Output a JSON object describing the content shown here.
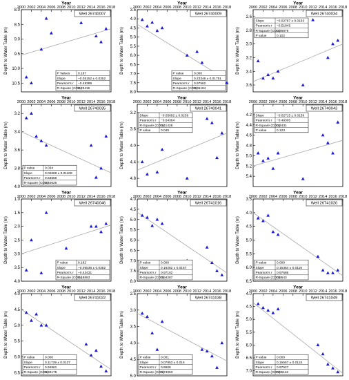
{
  "chart_data": [
    {
      "type": "scatter",
      "title": "Well 26740007",
      "xlabel": "Year",
      "ylabel": "Depth to Water Table (m)",
      "xlim": [
        2000,
        2018
      ],
      "ylim": [
        8.0,
        10.8
      ],
      "y_inverted": true,
      "xticks": [
        "2000",
        "2002",
        "2004",
        "2006",
        "2008",
        "2010",
        "2012",
        "2014",
        "2016",
        "2018"
      ],
      "yticks": [
        "8.0",
        "8.5",
        "9.0",
        "9.5",
        "10.0",
        "10.5"
      ],
      "x": [
        2001,
        2002,
        2004,
        2005,
        2006,
        2012,
        2015,
        2016,
        2017
      ],
      "y": [
        10.3,
        10.5,
        9.35,
        8.3,
        8.8,
        8.45,
        8.9,
        9.1,
        8.65
      ],
      "trend": [
        9.55,
        8.65
      ],
      "stats": {
        "labels": [
          "P Values",
          "Slope",
          "Pearson's r",
          "R-Square (COD)"
        ],
        "values": [
          "0.187",
          "−0.05152 ± 0.0352",
          "−0.49389",
          "0.23415"
        ]
      }
    },
    {
      "type": "scatter",
      "title": "Well 26740009",
      "xlabel": "Year",
      "ylabel": "Depth to Water Table (m)",
      "xlim": [
        2000,
        2018
      ],
      "ylim": [
        3.5,
        8.0
      ],
      "y_inverted": true,
      "xticks": [
        "2000",
        "2002",
        "2004",
        "2006",
        "2008",
        "2010",
        "2012",
        "2014",
        "2016",
        "2018"
      ],
      "yticks": [
        "3.5",
        "4.0",
        "4.5",
        "5.0",
        "5.5",
        "6.0",
        "6.5",
        "7.0",
        "7.5",
        "8.0"
      ],
      "x": [
        2001,
        2002,
        2003,
        2004,
        2005,
        2010,
        2012,
        2013,
        2016,
        2017,
        2018
      ],
      "y": [
        4.05,
        4.4,
        4.2,
        4.65,
        4.5,
        6.0,
        5.8,
        6.4,
        7.05,
        7.0,
        7.5
      ],
      "trend": [
        4.3,
        7.35
      ],
      "stats": {
        "labels": [
          "P value",
          "Slope",
          "Pearson's r",
          "R-Square (COD)"
        ],
        "values": [
          "0.000",
          "0.23346 ± 0.01751",
          "0.97562",
          "0.95184"
        ]
      }
    },
    {
      "type": "scatter",
      "title": "Well 26740034",
      "xlabel": "Year",
      "ylabel": "Depth to Water Table (m)",
      "xlim": [
        2000,
        2018
      ],
      "ylim": [
        2.5,
        3.7
      ],
      "y_inverted": true,
      "xticks": [
        "2000",
        "2002",
        "2004",
        "2006",
        "2008",
        "2010",
        "2012",
        "2014",
        "2016",
        "2018"
      ],
      "yticks": [
        "2.6",
        "2.8",
        "3.0",
        "3.2",
        "3.4",
        "3.6"
      ],
      "x": [
        2001,
        2002,
        2003,
        2004,
        2005,
        2010,
        2012,
        2015,
        2016,
        2017
      ],
      "y": [
        3.25,
        3.5,
        3.45,
        3.5,
        3.4,
        3.6,
        2.65,
        3.2,
        3.0,
        2.95
      ],
      "trend": [
        3.55,
        3.0
      ],
      "stats": {
        "labels": [
          "Slope",
          "Pearson's r",
          "R-Square (COD)",
          "P value"
        ],
        "values": [
          "−0.02787 ± 0.0153",
          "−0.51845",
          "0.26879",
          "0.102"
        ]
      }
    },
    {
      "type": "scatter",
      "title": "Well 26740035",
      "xlabel": "Year",
      "ylabel": "Depth to Water Table (m)",
      "xlim": [
        2000,
        2018
      ],
      "ylim": [
        3.1,
        4.0
      ],
      "y_inverted": true,
      "xticks": [
        "2000",
        "2002",
        "2004",
        "2006",
        "2008",
        "2010",
        "2012",
        "2014",
        "2016",
        "2018"
      ],
      "yticks": [
        "3.2",
        "3.4",
        "3.6",
        "3.8",
        "4.0"
      ],
      "x": [
        2001,
        2002,
        2003,
        2004,
        2005,
        2014,
        2015,
        2016,
        2017
      ],
      "y": [
        3.25,
        3.2,
        3.45,
        3.5,
        3.55,
        3.55,
        3.9,
        3.8,
        3.45
      ],
      "trend": [
        3.4,
        3.85
      ],
      "stats": {
        "labels": [
          "P value",
          "Slope",
          "Pearson's r",
          "R-Square (COD)"
        ],
        "values": [
          "0.034",
          "0.02689 ± 0.01108",
          "0.63656",
          "0.40626"
        ]
      }
    },
    {
      "type": "scatter",
      "title": "Well 26740041",
      "xlabel": "Year",
      "ylabel": "Depth to Water Table (m)",
      "xlim": [
        2000,
        2018
      ],
      "ylim": [
        3.0,
        5.0
      ],
      "y_inverted": true,
      "xticks": [
        "2000",
        "2002",
        "2004",
        "2006",
        "2008",
        "2010",
        "2012",
        "2014",
        "2016",
        "2018"
      ],
      "yticks": [
        "3.2",
        "3.6",
        "4.0",
        "4.4",
        "4.8"
      ],
      "x": [
        2001,
        2002,
        2004,
        2005,
        2010,
        2014,
        2015,
        2016,
        2017
      ],
      "y": [
        4.4,
        4.7,
        4.65,
        4.1,
        4.8,
        3.35,
        3.45,
        4.3,
        3.7
      ],
      "trend": [
        4.6,
        3.7
      ],
      "stats": {
        "labels": [
          "Slope",
          "Pearson's r",
          "R-Square (COD)",
          "P value"
        ],
        "values": [
          "−0.05692 ± 0.0239",
          "−0.64364",
          "0.41428",
          "0.045"
        ]
      }
    },
    {
      "type": "scatter",
      "title": "Well 26740043",
      "xlabel": "Year",
      "ylabel": "Depth to Water Table (m)",
      "xlim": [
        2000,
        2018
      ],
      "ylim": [
        4.0,
        5.6
      ],
      "y_inverted": true,
      "xticks": [
        "2000",
        "2002",
        "2004",
        "2006",
        "2008",
        "2010",
        "2012",
        "2014",
        "2016",
        "2018"
      ],
      "yticks": [
        "4.2",
        "4.4",
        "4.6",
        "4.8",
        "5.0",
        "5.2",
        "5.4"
      ],
      "x": [
        2001,
        2002,
        2003,
        2004,
        2005,
        2010,
        2014,
        2015,
        2016,
        2017
      ],
      "y": [
        4.95,
        5.1,
        5.05,
        5.25,
        4.95,
        5.45,
        4.6,
        4.75,
        4.95,
        4.35
      ],
      "trend": [
        5.2,
        4.7
      ],
      "stats": {
        "labels": [
          "Slope",
          "Pearson's r",
          "R-Square (COD)",
          "P value"
        ],
        "values": [
          "−0.02715 ± 0.0159",
          "−0.49305",
          "0.2431",
          "0.123"
        ]
      }
    },
    {
      "type": "scatter",
      "title": "Well 26740046",
      "xlabel": "Year",
      "ylabel": "Depth to Water Table (m)",
      "xlim": [
        2000,
        2018
      ],
      "ylim": [
        1.0,
        4.0
      ],
      "y_inverted": true,
      "xticks": [
        "2000",
        "2002",
        "2004",
        "2006",
        "2008",
        "2010",
        "2012",
        "2014",
        "2016",
        "2018"
      ],
      "yticks": [
        "1.0",
        "1.5",
        "2.0",
        "2.5",
        "3.0",
        "3.5",
        "4.0"
      ],
      "x": [
        2001,
        2002,
        2004,
        2005,
        2009,
        2014,
        2015,
        2016,
        2017
      ],
      "y": [
        3.6,
        2.5,
        3.7,
        1.5,
        2.8,
        2.0,
        2.0,
        2.2,
        1.9
      ],
      "trend": [
        3.0,
        1.95
      ],
      "stats": {
        "labels": [
          "P value",
          "Slope",
          "Pearson's r",
          "R-Square (COD)"
        ],
        "values": [
          "0.182",
          "−0.05536 ± 0.0382",
          "−0.43431",
          "0.18863"
        ]
      }
    },
    {
      "type": "scatter",
      "title": "Well 26741016",
      "xlabel": "Year",
      "ylabel": "Depth to Water Table (m)",
      "xlim": [
        2000,
        2018
      ],
      "ylim": [
        4.0,
        8.0
      ],
      "y_inverted": true,
      "xticks": [
        "2000",
        "2002",
        "2004",
        "2006",
        "2008",
        "2010",
        "2012",
        "2014",
        "2016",
        "2018"
      ],
      "yticks": [
        "4.0",
        "4.5",
        "5.0",
        "5.5",
        "6.0",
        "6.5",
        "7.0",
        "7.5",
        "8.0"
      ],
      "x": [
        2001,
        2002,
        2003,
        2004,
        2005,
        2010,
        2014,
        2015,
        2016,
        2017
      ],
      "y": [
        4.8,
        4.9,
        5.3,
        5.0,
        5.2,
        7.0,
        6.35,
        7.1,
        7.5,
        7.7
      ],
      "trend": [
        4.65,
        7.6
      ],
      "stats": {
        "labels": [
          "P value",
          "Slope",
          "Pearson's r",
          "R-Square (COD)"
        ],
        "values": [
          "0.000",
          "0.19282 ± 0.0167",
          "0.97102",
          "0.94287"
        ]
      }
    },
    {
      "type": "scatter",
      "title": "Well 26741020",
      "xlabel": "Year",
      "ylabel": "Depth to Water Table (m)",
      "xlim": [
        2000,
        2018
      ],
      "ylim": [
        3.5,
        6.5
      ],
      "y_inverted": true,
      "xticks": [
        "2000",
        "2002",
        "2004",
        "2006",
        "2008",
        "2010",
        "2012",
        "2014",
        "2016",
        "2018"
      ],
      "yticks": [
        "3.5",
        "4.0",
        "4.5",
        "5.0",
        "5.5",
        "6.0",
        "6.5"
      ],
      "x": [
        2001,
        2002,
        2003,
        2004,
        2005,
        2013,
        2014,
        2015,
        2016,
        2017
      ],
      "y": [
        4.2,
        4.3,
        4.1,
        4.7,
        4.8,
        5.6,
        6.1,
        6.2,
        6.2,
        6.1
      ],
      "trend": [
        4.0,
        6.3
      ],
      "stats": {
        "labels": [
          "P value",
          "Slope",
          "Pearson's r",
          "R-Square (COD)"
        ],
        "values": [
          "0.000",
          "0.15364 ± 0.0119",
          "0.97686",
          "0.9543"
        ]
      }
    },
    {
      "type": "scatter",
      "title": "Well 26741022",
      "xlabel": "Year",
      "ylabel": "Depth to Water Table (m)",
      "xlim": [
        2000,
        2018
      ],
      "ylim": [
        4.0,
        6.6
      ],
      "y_inverted": true,
      "xticks": [
        "2000",
        "2002",
        "2004",
        "2006",
        "2008",
        "2010",
        "2012",
        "2014",
        "2016",
        "2018"
      ],
      "yticks": [
        "4.0",
        "4.5",
        "5.0",
        "5.5",
        "6.0",
        "6.5"
      ],
      "x": [
        2001,
        2002,
        2003,
        2004,
        2005,
        2013,
        2014,
        2015,
        2016,
        2017
      ],
      "y": [
        4.6,
        4.85,
        4.65,
        5.0,
        5.0,
        5.6,
        5.95,
        5.8,
        6.3,
        6.45
      ],
      "trend": [
        4.5,
        6.4
      ],
      "stats": {
        "labels": [
          "P value",
          "Slope",
          "Pearson's r",
          "R-Square (COD)"
        ],
        "values": [
          "0.000",
          "0.11739 ± 0.0137",
          "0.94961",
          "0.90175"
        ]
      }
    },
    {
      "type": "scatter",
      "title": "Well 26741038",
      "xlabel": "Year",
      "ylabel": "Depth to Water Table (m)",
      "xlim": [
        2000,
        2018
      ],
      "ylim": [
        2.5,
        5.0
      ],
      "y_inverted": true,
      "xticks": [
        "2000",
        "2002",
        "2004",
        "2006",
        "2008",
        "2010",
        "2012",
        "2014",
        "2016",
        "2018"
      ],
      "yticks": [
        "2.5",
        "3.0",
        "3.5",
        "4.0",
        "4.5",
        "5.0"
      ],
      "x": [
        2001,
        2002,
        2003,
        2004,
        2005,
        2013,
        2014,
        2015,
        2016,
        2017
      ],
      "y": [
        3.1,
        3.2,
        3.7,
        4.2,
        3.35,
        4.2,
        4.25,
        4.4,
        4.75,
        4.0
      ],
      "trend": [
        3.1,
        4.55
      ],
      "stats": {
        "labels": [
          "P value",
          "Slope",
          "Pearson's r",
          "R-Square (COD)"
        ],
        "values": [
          "0.001",
          "0.07953 ± 0.016",
          "0.8606",
          "0.74063"
        ]
      }
    },
    {
      "type": "scatter",
      "title": "Well 26741049",
      "xlabel": "Year",
      "ylabel": "Depth to Water Table (m)",
      "xlim": [
        2000,
        2018
      ],
      "ylim": [
        4.0,
        7.2
      ],
      "y_inverted": true,
      "xticks": [
        "2000",
        "2002",
        "2004",
        "2006",
        "2008",
        "2010",
        "2012",
        "2014",
        "2016",
        "2018"
      ],
      "yticks": [
        "4.0",
        "4.5",
        "5.0",
        "5.5",
        "6.0",
        "6.5",
        "7.0"
      ],
      "x": [
        2001,
        2002,
        2003,
        2004,
        2005,
        2013,
        2014,
        2015,
        2016,
        2017
      ],
      "y": [
        4.4,
        4.55,
        4.65,
        4.75,
        4.6,
        6.0,
        6.35,
        6.75,
        6.9,
        7.05
      ],
      "trend": [
        4.35,
        7.1
      ],
      "stats": {
        "labels": [
          "P value",
          "Slope",
          "Pearson's r",
          "R-Square (COD)"
        ],
        "values": [
          "0.000",
          "0.15567 ± 0.0124",
          "0.97527",
          "0.95116"
        ]
      }
    }
  ],
  "colors": {
    "marker": "#1a1ad6",
    "trend": "#a8a8a8",
    "axis": "#000000"
  },
  "stats_box_placement": [
    "bottom-right",
    "bottom-right",
    "top-left",
    "bottom-left",
    "top-left",
    "top-left",
    "bottom-right",
    "bottom-left",
    "bottom-left",
    "bottom-left",
    "bottom-left",
    "bottom-left"
  ]
}
